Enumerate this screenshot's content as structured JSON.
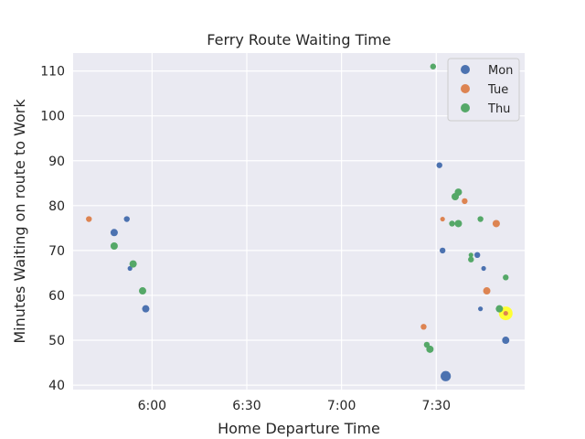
{
  "chart_data": {
    "type": "scatter",
    "title": "Ferry Route Waiting Time",
    "xlabel": "Home Departure Time",
    "ylabel": "Minutes Waiting on route to Work",
    "x_unit": "clock time (h:mm)",
    "xlim": [
      "5:35",
      "7:58"
    ],
    "ylim": [
      39,
      114
    ],
    "x_ticks": [
      "6:00",
      "6:30",
      "7:00",
      "7:30"
    ],
    "y_ticks": [
      40,
      50,
      60,
      70,
      80,
      90,
      100,
      110
    ],
    "grid": true,
    "legend": {
      "position": "top-right",
      "entries": [
        "Mon",
        "Tue",
        "Thu"
      ]
    },
    "colors": {
      "Mon": "#4c72b0",
      "Tue": "#dd8452",
      "Thu": "#55a868",
      "highlight": "#ffff33"
    },
    "series": [
      {
        "name": "Mon",
        "points": [
          {
            "x": "5:48",
            "y": 74,
            "size": "medium"
          },
          {
            "x": "5:52",
            "y": 77,
            "size": "small"
          },
          {
            "x": "5:53",
            "y": 66,
            "size": "tiny"
          },
          {
            "x": "5:58",
            "y": 57,
            "size": "medium"
          },
          {
            "x": "7:31",
            "y": 89,
            "size": "small"
          },
          {
            "x": "7:32",
            "y": 70,
            "size": "small"
          },
          {
            "x": "7:33",
            "y": 42,
            "size": "large"
          },
          {
            "x": "7:43",
            "y": 69,
            "size": "small"
          },
          {
            "x": "7:44",
            "y": 57,
            "size": "tiny"
          },
          {
            "x": "7:45",
            "y": 66,
            "size": "tiny"
          },
          {
            "x": "7:52",
            "y": 50,
            "size": "medium"
          }
        ]
      },
      {
        "name": "Tue",
        "points": [
          {
            "x": "5:40",
            "y": 77,
            "size": "small"
          },
          {
            "x": "7:26",
            "y": 53,
            "size": "small"
          },
          {
            "x": "7:32",
            "y": 77,
            "size": "tiny"
          },
          {
            "x": "7:39",
            "y": 81,
            "size": "small"
          },
          {
            "x": "7:46",
            "y": 61,
            "size": "medium"
          },
          {
            "x": "7:49",
            "y": 76,
            "size": "medium"
          },
          {
            "x": "7:52",
            "y": 56,
            "size": "tiny",
            "highlighted": true
          }
        ]
      },
      {
        "name": "Thu",
        "points": [
          {
            "x": "5:48",
            "y": 71,
            "size": "medium"
          },
          {
            "x": "5:54",
            "y": 67,
            "size": "medium"
          },
          {
            "x": "5:57",
            "y": 61,
            "size": "medium"
          },
          {
            "x": "7:27",
            "y": 49,
            "size": "small"
          },
          {
            "x": "7:28",
            "y": 48,
            "size": "medium"
          },
          {
            "x": "7:29",
            "y": 111,
            "size": "small"
          },
          {
            "x": "7:35",
            "y": 76,
            "size": "small"
          },
          {
            "x": "7:36",
            "y": 82,
            "size": "medium"
          },
          {
            "x": "7:37",
            "y": 83,
            "size": "medium"
          },
          {
            "x": "7:37",
            "y": 76,
            "size": "medium"
          },
          {
            "x": "7:41",
            "y": 69,
            "size": "tiny"
          },
          {
            "x": "7:41",
            "y": 68,
            "size": "small"
          },
          {
            "x": "7:44",
            "y": 77,
            "size": "small"
          },
          {
            "x": "7:50",
            "y": 57,
            "size": "medium"
          },
          {
            "x": "7:52",
            "y": 64,
            "size": "small"
          }
        ]
      }
    ]
  }
}
